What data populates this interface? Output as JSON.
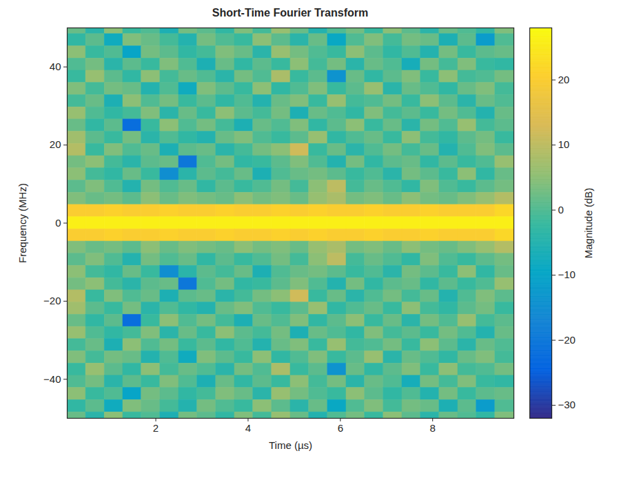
{
  "chart_data": {
    "type": "heatmap",
    "title": "Short-Time Fourier Transform",
    "xlabel": "Time (µs)",
    "ylabel": "Frequency (MHz)",
    "xlim": [
      0.08,
      9.76
    ],
    "ylim": [
      -50,
      50
    ],
    "xticks": [
      2,
      4,
      6,
      8
    ],
    "yticks": [
      -40,
      -20,
      0,
      20,
      40
    ],
    "grid": false,
    "x": [
      0.28,
      0.69,
      1.09,
      1.49,
      1.89,
      2.3,
      2.7,
      3.1,
      3.51,
      3.91,
      4.31,
      4.72,
      5.12,
      5.52,
      5.93,
      6.33,
      6.73,
      7.14,
      7.54,
      7.94,
      8.35,
      8.75,
      9.15,
      9.56
    ],
    "y": [
      50,
      46.875,
      43.75,
      40.625,
      37.5,
      34.375,
      31.25,
      28.125,
      25,
      21.875,
      18.75,
      15.625,
      12.5,
      9.375,
      6.25,
      3.125,
      0,
      -3.125,
      -6.25,
      -9.375,
      -12.5,
      -15.625,
      -18.75,
      -21.875,
      -25,
      -28.125,
      -31.25,
      -34.375,
      -37.5,
      -40.625,
      -43.75,
      -46.875,
      -50
    ],
    "z": [
      [
        2,
        -4,
        5,
        -2,
        0,
        -6,
        3,
        1,
        -3,
        4,
        -1,
        6,
        2,
        -5,
        0,
        3,
        -2,
        5,
        1,
        -4,
        2,
        0,
        -3,
        4
      ],
      [
        -3,
        1,
        -8,
        4,
        2,
        -1,
        -5,
        3,
        0,
        -2,
        5,
        1,
        -4,
        2,
        -9,
        0,
        4,
        -1,
        3,
        2,
        -6,
        1,
        -12,
        0
      ],
      [
        5,
        -2,
        0,
        -10,
        3,
        1,
        -3,
        -1,
        4,
        2,
        -4,
        6,
        3,
        0,
        -2,
        5,
        1,
        -3,
        0,
        -5,
        3,
        -2,
        1,
        2
      ],
      [
        0,
        3,
        -4,
        1,
        -2,
        4,
        0,
        -6,
        2,
        -3,
        1,
        -2,
        5,
        -1,
        3,
        -4,
        2,
        0,
        -7,
        3,
        -1,
        4,
        -2,
        -3
      ],
      [
        -2,
        6,
        1,
        -3,
        5,
        -1,
        2,
        0,
        -4,
        3,
        0,
        8,
        -2,
        1,
        -14,
        2,
        -3,
        1,
        4,
        -2,
        5,
        -1,
        0,
        3
      ],
      [
        4,
        -1,
        3,
        2,
        -5,
        0,
        -8,
        4,
        1,
        -2,
        5,
        -3,
        0,
        4,
        -2,
        1,
        6,
        -4,
        2,
        0,
        -3,
        2,
        4,
        -1
      ],
      [
        -1,
        2,
        -6,
        5,
        0,
        3,
        -2,
        1,
        -3,
        0,
        -5,
        2,
        4,
        -2,
        6,
        -1,
        0,
        3,
        -2,
        5,
        1,
        -4,
        2,
        0
      ],
      [
        6,
        0,
        -3,
        -1,
        4,
        -4,
        2,
        -2,
        5,
        1,
        -1,
        3,
        -6,
        2,
        0,
        -3,
        4,
        -1,
        1,
        -2,
        3,
        0,
        -5,
        2
      ],
      [
        2,
        -3,
        1,
        -22,
        -2,
        5,
        0,
        3,
        -1,
        -6,
        2,
        0,
        4,
        -3,
        1,
        5,
        -2,
        2,
        -4,
        3,
        0,
        6,
        -1,
        1
      ],
      [
        7,
        1,
        -2,
        3,
        -4,
        0,
        -3,
        -5,
        2,
        4,
        0,
        -2,
        1,
        6,
        -3,
        0,
        2,
        -2,
        5,
        -1,
        -3,
        1,
        3,
        -2
      ],
      [
        9,
        -2,
        4,
        0,
        2,
        -6,
        1,
        2,
        -4,
        -1,
        3,
        5,
        12,
        -2,
        2,
        -4,
        0,
        3,
        -1,
        2,
        -5,
        0,
        4,
        1
      ],
      [
        3,
        5,
        -1,
        -4,
        1,
        2,
        -20,
        0,
        3,
        -3,
        -2,
        1,
        4,
        0,
        -5,
        3,
        -3,
        1,
        2,
        -3,
        1,
        -2,
        0,
        6
      ],
      [
        5,
        -1,
        -3,
        2,
        -2,
        -15,
        -4,
        1,
        -1,
        2,
        -6,
        0,
        2,
        3,
        1,
        -2,
        0,
        -4,
        3,
        1,
        -2,
        5,
        -3,
        2
      ],
      [
        1,
        4,
        0,
        -5,
        3,
        0,
        2,
        -3,
        1,
        -2,
        0,
        3,
        -1,
        5,
        10,
        -1,
        2,
        0,
        -3,
        4,
        0,
        -2,
        1,
        3
      ],
      [
        4,
        2,
        3,
        1,
        5,
        2,
        4,
        3,
        2,
        5,
        3,
        4,
        2,
        6,
        8,
        3,
        4,
        2,
        5,
        3,
        2,
        4,
        6,
        9
      ],
      [
        20,
        20,
        21,
        20,
        20,
        21,
        20,
        20,
        21,
        20,
        20,
        21,
        20,
        21,
        20,
        20,
        21,
        20,
        20,
        21,
        20,
        20,
        20,
        22
      ],
      [
        26,
        26,
        26,
        26,
        26,
        26,
        26,
        26,
        26,
        26,
        26,
        26,
        26,
        26,
        26,
        26,
        26,
        26,
        26,
        26,
        26,
        26,
        26,
        26
      ],
      [
        20,
        20,
        21,
        20,
        20,
        21,
        20,
        20,
        21,
        20,
        20,
        21,
        20,
        21,
        20,
        20,
        21,
        20,
        20,
        21,
        20,
        20,
        20,
        22
      ],
      [
        4,
        2,
        3,
        1,
        5,
        2,
        4,
        3,
        2,
        5,
        3,
        4,
        2,
        6,
        8,
        3,
        4,
        2,
        5,
        3,
        2,
        4,
        6,
        9
      ],
      [
        1,
        4,
        0,
        -5,
        3,
        0,
        2,
        -3,
        1,
        -2,
        0,
        3,
        -1,
        5,
        10,
        -1,
        2,
        0,
        -3,
        4,
        0,
        -2,
        1,
        3
      ],
      [
        5,
        -1,
        -3,
        2,
        -2,
        -15,
        -4,
        1,
        -1,
        2,
        -6,
        0,
        2,
        3,
        1,
        -2,
        0,
        -4,
        3,
        1,
        -2,
        5,
        -3,
        2
      ],
      [
        3,
        5,
        -1,
        -4,
        1,
        2,
        -20,
        0,
        3,
        -3,
        -2,
        1,
        4,
        0,
        -5,
        3,
        -3,
        1,
        2,
        -3,
        1,
        -2,
        0,
        6
      ],
      [
        9,
        -2,
        4,
        0,
        2,
        -6,
        1,
        2,
        -4,
        -1,
        3,
        5,
        12,
        -2,
        2,
        -4,
        0,
        3,
        -1,
        2,
        -5,
        0,
        4,
        1
      ],
      [
        7,
        1,
        -2,
        3,
        -4,
        0,
        -3,
        -5,
        2,
        4,
        0,
        -2,
        1,
        6,
        -3,
        0,
        2,
        -2,
        5,
        -1,
        -3,
        1,
        3,
        -2
      ],
      [
        2,
        -3,
        1,
        -22,
        -2,
        5,
        0,
        3,
        -1,
        -6,
        2,
        0,
        4,
        -3,
        1,
        5,
        -2,
        2,
        -4,
        3,
        0,
        6,
        -1,
        1
      ],
      [
        6,
        0,
        -3,
        -1,
        4,
        -4,
        2,
        -2,
        5,
        1,
        -1,
        3,
        -6,
        2,
        0,
        -3,
        4,
        -1,
        1,
        -2,
        3,
        0,
        -5,
        2
      ],
      [
        -1,
        2,
        -6,
        5,
        0,
        3,
        -2,
        1,
        -3,
        0,
        -5,
        2,
        4,
        -2,
        6,
        -1,
        0,
        3,
        -2,
        5,
        1,
        -4,
        2,
        0
      ],
      [
        4,
        -1,
        3,
        2,
        -5,
        0,
        -8,
        4,
        1,
        -2,
        5,
        -3,
        0,
        4,
        -2,
        1,
        6,
        -4,
        2,
        0,
        -3,
        2,
        4,
        -1
      ],
      [
        -2,
        6,
        1,
        -3,
        5,
        -1,
        2,
        0,
        -4,
        3,
        0,
        8,
        -2,
        1,
        -14,
        2,
        -3,
        1,
        4,
        -2,
        5,
        -1,
        0,
        3
      ],
      [
        0,
        3,
        -4,
        1,
        -2,
        4,
        0,
        -6,
        2,
        -3,
        1,
        -2,
        5,
        -1,
        3,
        -4,
        2,
        0,
        -7,
        3,
        -1,
        4,
        -2,
        -3
      ],
      [
        5,
        -2,
        0,
        -10,
        3,
        1,
        -3,
        -1,
        4,
        2,
        -4,
        6,
        3,
        0,
        -2,
        5,
        1,
        -3,
        0,
        -5,
        3,
        -2,
        1,
        2
      ],
      [
        -3,
        1,
        -8,
        4,
        2,
        -1,
        -5,
        3,
        0,
        -2,
        5,
        1,
        -4,
        2,
        -9,
        0,
        4,
        -1,
        3,
        2,
        -6,
        1,
        -12,
        0
      ],
      [
        2,
        -4,
        5,
        -2,
        0,
        -6,
        3,
        1,
        -3,
        4,
        -1,
        6,
        2,
        -5,
        0,
        3,
        -2,
        5,
        1,
        -4,
        2,
        0,
        -3,
        4
      ]
    ],
    "colorbar": {
      "label": "Magnitude (dB)",
      "range": [
        -32,
        28
      ],
      "ticks": [
        -30,
        -20,
        -10,
        0,
        10,
        20
      ]
    }
  }
}
